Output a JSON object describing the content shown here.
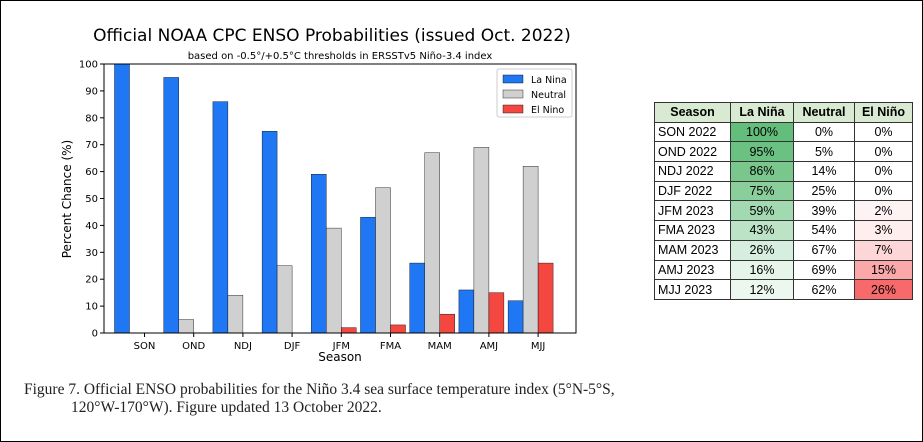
{
  "chart_data": {
    "type": "bar",
    "title": "Official NOAA CPC ENSO Probabilities (issued Oct. 2022)",
    "subtitle": "based on -0.5°/+0.5°C thresholds in ERSSTv5 Niño-3.4 index",
    "xlabel": "Season",
    "ylabel": "Percent Chance (%)",
    "ylim": [
      0,
      100
    ],
    "yticks": [
      0,
      10,
      20,
      30,
      40,
      50,
      60,
      70,
      80,
      90,
      100
    ],
    "grid": false,
    "legend_position": "top-right",
    "categories": [
      "SON",
      "OND",
      "NDJ",
      "DJF",
      "JFM",
      "FMA",
      "MAM",
      "AMJ",
      "MJJ"
    ],
    "series": [
      {
        "name": "La Nina",
        "color": "#1f77f4",
        "values": [
          100,
          95,
          86,
          75,
          59,
          43,
          26,
          16,
          12
        ]
      },
      {
        "name": "Neutral",
        "color": "#d0d0d0",
        "values": [
          0,
          5,
          14,
          25,
          39,
          54,
          67,
          69,
          62
        ]
      },
      {
        "name": "El Nino",
        "color": "#f4473f",
        "values": [
          0,
          0,
          0,
          0,
          2,
          3,
          7,
          15,
          26
        ]
      }
    ]
  },
  "caption": {
    "line1": "Figure 7. Official ENSO probabilities for the Niño 3.4 sea surface temperature index (5°N-5°S,",
    "line2": "120°W-170°W). Figure updated 13 October 2022."
  },
  "table": {
    "headers": [
      "Season",
      "La Niña",
      "Neutral",
      "El Niño"
    ],
    "header_color": "#d9ead3",
    "rows": [
      {
        "season": "SON 2022",
        "la_nina": "100%",
        "neutral": "0%",
        "el_nino": "0%"
      },
      {
        "season": "OND 2022",
        "la_nina": "95%",
        "neutral": "5%",
        "el_nino": "0%"
      },
      {
        "season": "NDJ 2022",
        "la_nina": "86%",
        "neutral": "14%",
        "el_nino": "0%"
      },
      {
        "season": "DJF 2022",
        "la_nina": "75%",
        "neutral": "25%",
        "el_nino": "0%"
      },
      {
        "season": "JFM 2023",
        "la_nina": "59%",
        "neutral": "39%",
        "el_nino": "2%"
      },
      {
        "season": "FMA 2023",
        "la_nina": "43%",
        "neutral": "54%",
        "el_nino": "3%"
      },
      {
        "season": "MAM 2023",
        "la_nina": "26%",
        "neutral": "67%",
        "el_nino": "7%"
      },
      {
        "season": "AMJ 2023",
        "la_nina": "16%",
        "neutral": "69%",
        "el_nino": "15%"
      },
      {
        "season": "MJJ 2023",
        "la_nina": "12%",
        "neutral": "62%",
        "el_nino": "26%"
      }
    ]
  }
}
